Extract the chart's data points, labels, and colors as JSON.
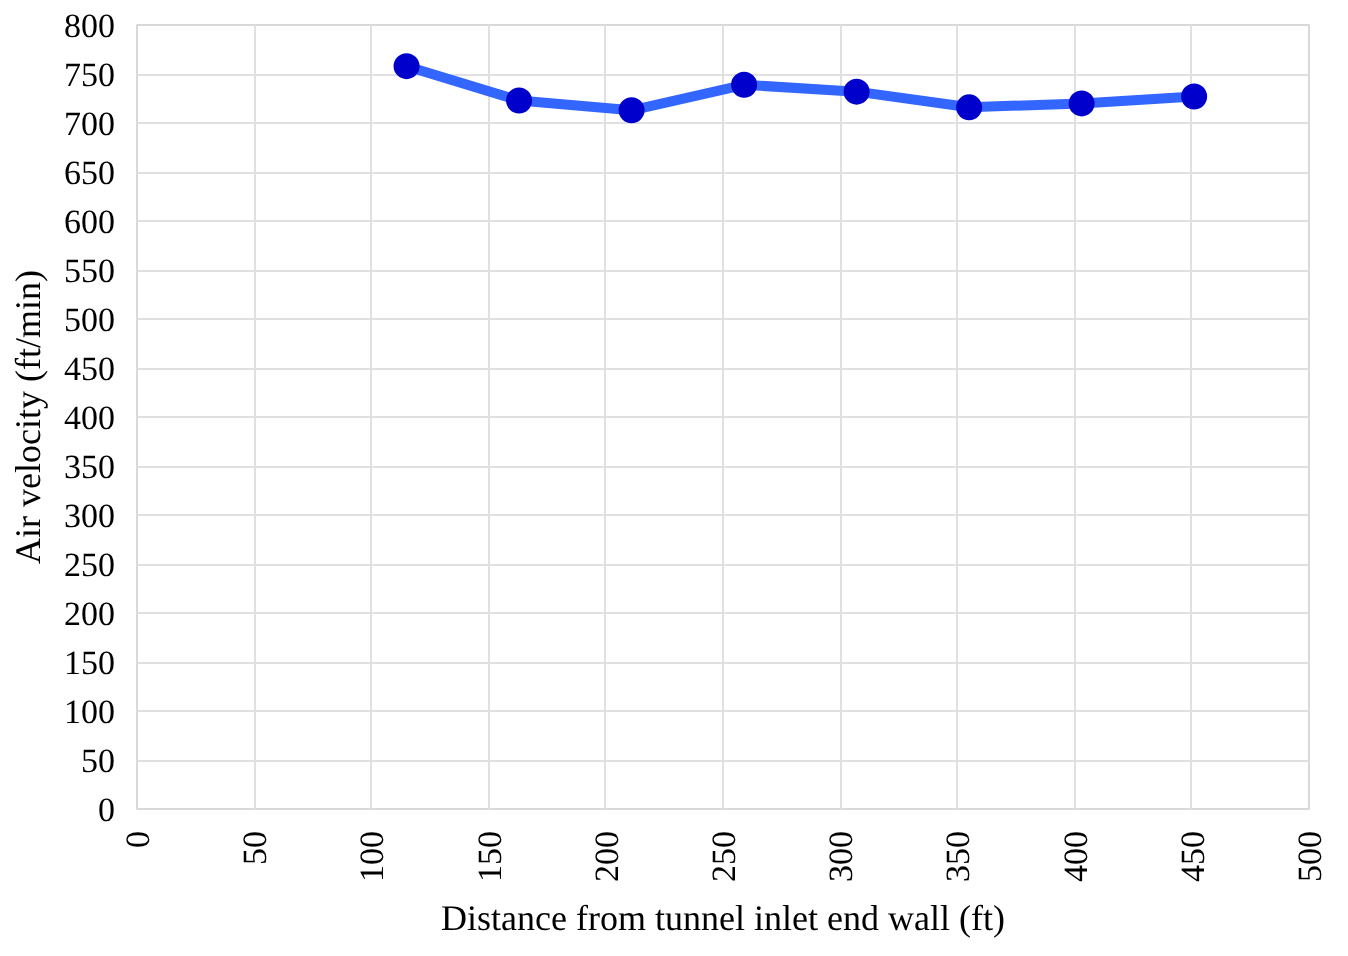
{
  "chart_data": {
    "type": "line",
    "xlabel": "Distance from tunnel inlet end wall (ft)",
    "ylabel": "Air velocity (ft/min)",
    "x": [
      115,
      163,
      211,
      259,
      307,
      355,
      403,
      451
    ],
    "series": [
      {
        "color": "#3366ff",
        "values": [
          758,
          723,
          713,
          739,
          732,
          716,
          720,
          727
        ]
      }
    ],
    "xlim": [
      0,
      500
    ],
    "xticks": [
      0,
      50,
      100,
      150,
      200,
      250,
      300,
      350,
      400,
      450,
      500
    ],
    "ylim": [
      0,
      800
    ],
    "yticks": [
      0,
      50,
      100,
      150,
      200,
      250,
      300,
      350,
      400,
      450,
      500,
      550,
      600,
      650,
      700,
      750,
      800
    ],
    "grid": true,
    "marker": "circle",
    "line_style": "solid"
  }
}
